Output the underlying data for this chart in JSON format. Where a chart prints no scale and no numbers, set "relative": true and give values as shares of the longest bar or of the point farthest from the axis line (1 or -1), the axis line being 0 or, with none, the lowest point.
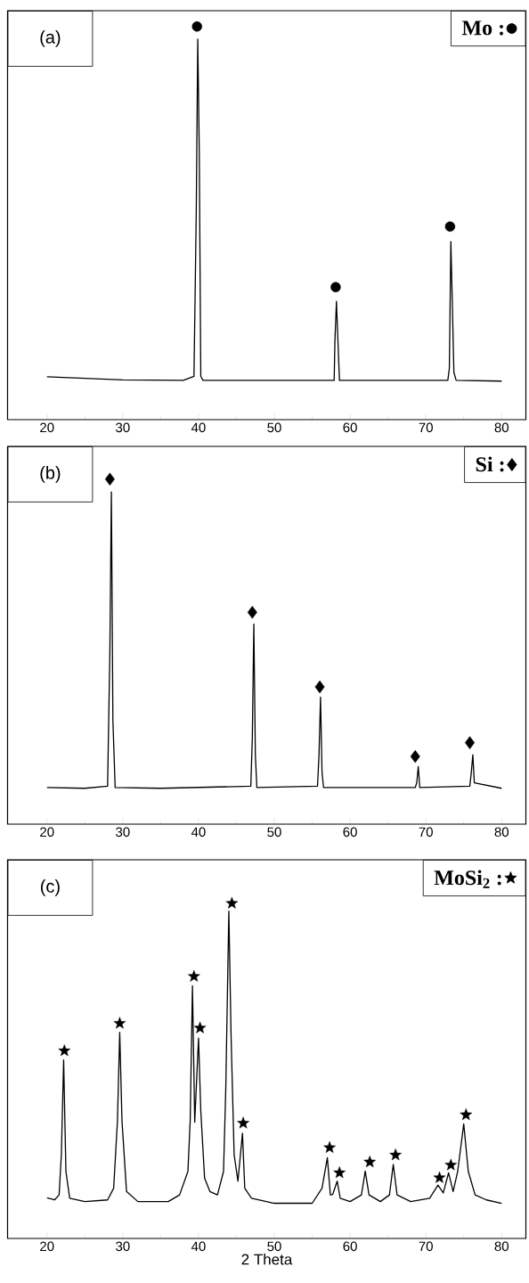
{
  "chart_data": [
    {
      "type": "line",
      "relative": true,
      "xlim": [
        14.8,
        83.2
      ],
      "xticks": [
        20,
        30,
        40,
        50,
        60,
        70,
        80
      ],
      "legend": "top right",
      "annotations": [
        "(a)"
      ],
      "series": [
        {
          "color": "#000000",
          "x": [
            20,
            25,
            30,
            38,
            39.4,
            39.7,
            39.9,
            40.1,
            40.3,
            40.6,
            57.9,
            58.0,
            58.2,
            58.4,
            58.6,
            72.9,
            73.1,
            73.3,
            73.5,
            73.7,
            74.0,
            80
          ],
          "values": [
            0.109,
            0.105,
            0.101,
            0.1,
            0.11,
            0.527,
            0.968,
            0.68,
            0.11,
            0.1,
            0.1,
            0.2,
            0.301,
            0.2,
            0.1,
            0.1,
            0.13,
            0.453,
            0.29,
            0.12,
            0.1,
            0.098
          ]
        },
        {
          "type": "scatter",
          "name": "Mo :",
          "marker": "circle",
          "color": "#000000",
          "x": [
            39.8,
            58.1,
            73.2
          ],
          "values": [
            1.0,
            0.337,
            0.491
          ]
        }
      ]
    },
    {
      "type": "line",
      "relative": true,
      "xlim": [
        14.8,
        83.2
      ],
      "xticks": [
        20,
        30,
        40,
        50,
        60,
        70,
        80
      ],
      "legend": "top right",
      "annotations": [
        "(b)"
      ],
      "series": [
        {
          "color": "#000000",
          "x": [
            20,
            25,
            28.0,
            28.3,
            28.5,
            28.7,
            29.0,
            35,
            46.9,
            47.1,
            47.3,
            47.5,
            47.7,
            55.7,
            55.9,
            56.1,
            56.3,
            56.5,
            68.6,
            68.8,
            69.0,
            69.2,
            75.8,
            76.0,
            76.2,
            76.4,
            80
          ],
          "values": [
            0.106,
            0.104,
            0.11,
            0.5,
            0.963,
            0.3,
            0.106,
            0.104,
            0.11,
            0.25,
            0.58,
            0.2,
            0.106,
            0.11,
            0.2,
            0.368,
            0.15,
            0.106,
            0.106,
            0.12,
            0.167,
            0.106,
            0.11,
            0.15,
            0.201,
            0.12,
            0.104
          ]
        },
        {
          "type": "scatter",
          "name": "Si :",
          "marker": "diamond",
          "color": "#000000",
          "x": [
            28.3,
            47.1,
            56.0,
            68.6,
            75.8
          ],
          "values": [
            1.0,
            0.614,
            0.398,
            0.196,
            0.236
          ]
        }
      ]
    },
    {
      "type": "line",
      "relative": true,
      "xlim": [
        14.8,
        83.2
      ],
      "xticks": [
        20,
        30,
        40,
        50,
        60,
        70,
        80
      ],
      "legend": "top right",
      "xlabel": "2 Theta",
      "annotations": [
        "(c)"
      ],
      "series": [
        {
          "color": "#000000",
          "x": [
            20,
            21,
            21.6,
            21.9,
            22.2,
            22.5,
            23,
            25,
            28,
            28.8,
            29.3,
            29.6,
            29.9,
            30.5,
            32,
            36,
            37.5,
            38.6,
            38.9,
            39.2,
            39.5,
            40.0,
            40.3,
            40.8,
            41.5,
            42.5,
            43.3,
            43.6,
            44.0,
            44.3,
            44.7,
            45.2,
            45.8,
            46.1,
            47,
            50,
            55,
            56.3,
            57.0,
            57.4,
            57.7,
            58.3,
            58.7,
            60,
            61.5,
            62.0,
            62.5,
            64,
            65.2,
            65.7,
            66.2,
            68,
            70.5,
            71.6,
            72.3,
            73.0,
            73.6,
            74.2,
            75.0,
            75.6,
            76.5,
            78,
            80
          ],
          "values": [
            0.121,
            0.115,
            0.13,
            0.25,
            0.533,
            0.2,
            0.12,
            0.11,
            0.115,
            0.15,
            0.35,
            0.615,
            0.35,
            0.14,
            0.11,
            0.11,
            0.13,
            0.2,
            0.35,
            0.754,
            0.347,
            0.598,
            0.38,
            0.18,
            0.14,
            0.13,
            0.2,
            0.45,
            0.977,
            0.6,
            0.25,
            0.171,
            0.314,
            0.15,
            0.12,
            0.105,
            0.105,
            0.15,
            0.241,
            0.13,
            0.131,
            0.171,
            0.12,
            0.11,
            0.13,
            0.201,
            0.13,
            0.11,
            0.13,
            0.221,
            0.13,
            0.11,
            0.12,
            0.159,
            0.136,
            0.196,
            0.14,
            0.2,
            0.342,
            0.2,
            0.13,
            0.115,
            0.105
          ]
        },
        {
          "type": "scatter",
          "name": "MoSi$_{2}$ :",
          "marker": "star",
          "color": "#000000",
          "x": [
            22.3,
            29.6,
            39.4,
            40.2,
            44.4,
            45.9,
            57.3,
            58.6,
            62.6,
            66.0,
            71.8,
            73.3,
            75.3
          ],
          "values": [
            0.56,
            0.642,
            0.782,
            0.628,
            1.0,
            0.344,
            0.271,
            0.196,
            0.228,
            0.249,
            0.181,
            0.219,
            0.369
          ]
        }
      ]
    }
  ]
}
